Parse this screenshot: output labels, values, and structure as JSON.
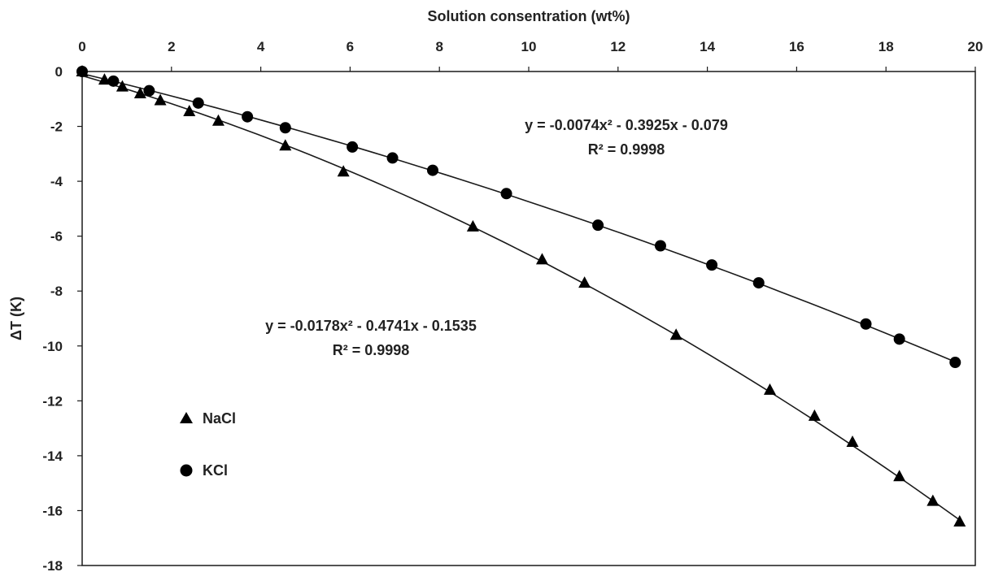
{
  "chart_data": {
    "type": "scatter",
    "xlabel": "Solution consentration (wt%)",
    "ylabel": "ΔT (K)",
    "xlim": [
      0,
      20
    ],
    "ylim": [
      -18,
      0
    ],
    "x_ticks": [
      0,
      2,
      4,
      6,
      8,
      10,
      12,
      14,
      16,
      18,
      20
    ],
    "y_ticks": [
      0,
      -2,
      -4,
      -6,
      -8,
      -10,
      -12,
      -14,
      -16,
      -18
    ],
    "x_axis_position": "top",
    "grid": false,
    "legend_position": "lower-left",
    "series": [
      {
        "name": "NaCl",
        "marker": "triangle",
        "x": [
          0,
          0.5,
          0.9,
          1.3,
          1.75,
          2.4,
          3.05,
          4.55,
          5.85,
          8.75,
          10.3,
          11.25,
          13.3,
          15.4,
          16.4,
          17.25,
          18.3,
          19.05,
          19.65
        ],
        "y": [
          0,
          -0.3,
          -0.55,
          -0.8,
          -1.05,
          -1.45,
          -1.8,
          -2.7,
          -3.65,
          -5.65,
          -6.85,
          -7.7,
          -9.6,
          -11.6,
          -12.55,
          -13.5,
          -14.75,
          -15.65,
          -16.4
        ],
        "trendline": {
          "type": "poly2",
          "a": -0.0178,
          "b": -0.4741,
          "c": -0.1535,
          "label_eq": "y = -0.0178x² - 0.4741x - 0.1535",
          "label_r2": "R² = 0.9998"
        }
      },
      {
        "name": "KCl",
        "marker": "circle",
        "x": [
          0,
          0.7,
          1.5,
          2.6,
          3.7,
          4.55,
          6.05,
          6.95,
          7.85,
          9.5,
          11.55,
          12.95,
          14.1,
          15.15,
          17.55,
          18.3,
          19.55
        ],
        "y": [
          0,
          -0.35,
          -0.7,
          -1.15,
          -1.65,
          -2.05,
          -2.75,
          -3.15,
          -3.6,
          -4.45,
          -5.6,
          -6.35,
          -7.05,
          -7.7,
          -9.2,
          -9.75,
          -10.6
        ],
        "trendline": {
          "type": "poly2",
          "a": -0.0074,
          "b": -0.3925,
          "c": -0.079,
          "label_eq": "y = -0.0074x² - 0.3925x - 0.079",
          "label_r2": "R² = 0.9998"
        }
      }
    ]
  },
  "colors": {
    "marker": "#000000",
    "line": "#1a1a1a",
    "text": "#222222"
  }
}
